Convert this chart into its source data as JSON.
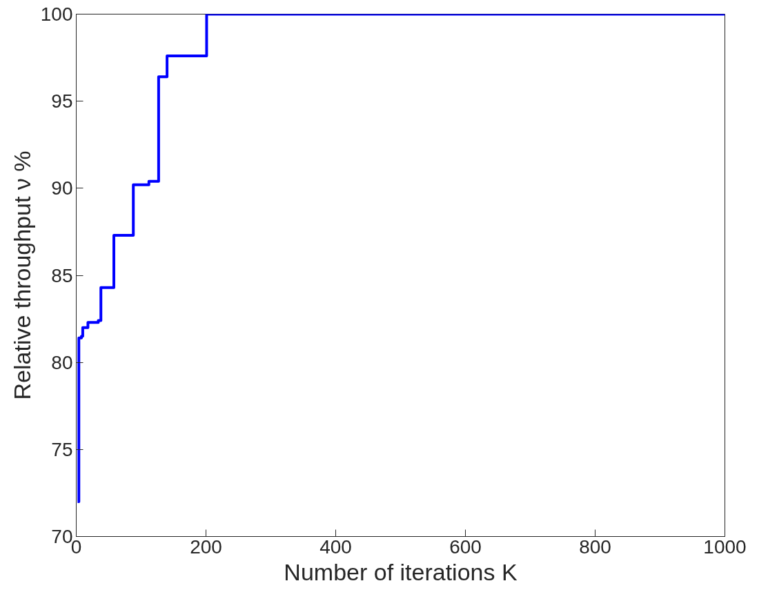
{
  "chart_data": {
    "type": "step",
    "xlabel": "Number of iterations K",
    "ylabel": "Relative throughput ν %",
    "x": [
      2,
      4,
      8,
      10,
      18,
      34,
      38,
      58,
      88,
      112,
      127,
      140,
      201,
      1000
    ],
    "series": [
      {
        "color": "#0000ff",
        "values": [
          72,
          81.4,
          81.5,
          82.0,
          82.3,
          82.4,
          84.3,
          87.3,
          90.2,
          90.4,
          96.4,
          97.6,
          100,
          100
        ]
      }
    ],
    "xlim": [
      0,
      1000
    ],
    "xticks": [
      0,
      200,
      400,
      600,
      800,
      1000
    ],
    "ylim": [
      70,
      100
    ],
    "yticks": [
      70,
      75,
      80,
      85,
      90,
      95,
      100
    ],
    "grid": false
  }
}
